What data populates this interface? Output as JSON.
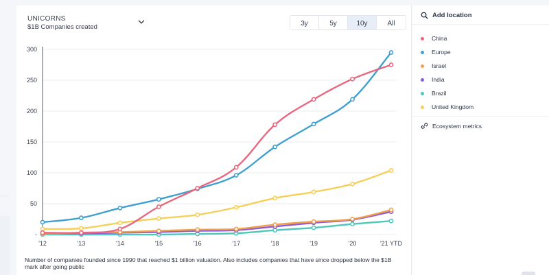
{
  "header": {
    "title": "UNICORNS",
    "subtitle": "$1B Companies created"
  },
  "range_tabs": [
    {
      "label": "3y",
      "active": false
    },
    {
      "label": "5y",
      "active": false
    },
    {
      "label": "10y",
      "active": true
    },
    {
      "label": "All",
      "active": false
    }
  ],
  "footnote": "Number of companies founded since 1990 that reached $1 billion valuation. Also includes companies that have since dropped below the $1B mark after going public",
  "sidebar": {
    "add_location": "Add location",
    "ecosystem_metrics": "Ecosystem metrics",
    "legend": [
      {
        "label": "China",
        "color": "#e8677f"
      },
      {
        "label": "Europe",
        "color": "#3fa0d0"
      },
      {
        "label": "Israel",
        "color": "#f0a04a"
      },
      {
        "label": "India",
        "color": "#8e5bd6"
      },
      {
        "label": "Brazil",
        "color": "#4ec7bb"
      },
      {
        "label": "United Kingdom",
        "color": "#f6cf5a"
      }
    ]
  },
  "colors": {
    "accent_tab": "#e8eef7",
    "grid": "#e9ecf0",
    "axis_text": "#39404d"
  },
  "chart_data": {
    "type": "line",
    "x": [
      "'12",
      "'13",
      "'14",
      "'15",
      "'16",
      "'17",
      "'18",
      "'19",
      "'20",
      "'21 YTD"
    ],
    "ylim": [
      0,
      300
    ],
    "yticks": [
      "-",
      "50",
      "100",
      "150",
      "200",
      "250",
      "300"
    ],
    "grid": "horizontal",
    "series": [
      {
        "name": "China",
        "color": "#e8677f",
        "values": [
          3,
          3,
          9,
          45,
          75,
          109,
          178,
          219,
          252,
          275
        ]
      },
      {
        "name": "Europe",
        "color": "#3fa0d0",
        "values": [
          20,
          27,
          43,
          57,
          74,
          96,
          142,
          179,
          219,
          295
        ]
      },
      {
        "name": "Israel",
        "color": "#f0a04a",
        "values": [
          1,
          3,
          4,
          6,
          8,
          9,
          16,
          21,
          25,
          40
        ]
      },
      {
        "name": "India",
        "color": "#8e5bd6",
        "values": [
          2,
          2,
          3,
          4,
          6,
          7,
          13,
          19,
          24,
          37
        ]
      },
      {
        "name": "Brazil",
        "color": "#4ec7bb",
        "values": [
          0,
          0,
          0,
          0,
          1,
          2,
          7,
          11,
          17,
          22
        ]
      },
      {
        "name": "United Kingdom",
        "color": "#f6cf5a",
        "values": [
          9,
          10,
          19,
          26,
          32,
          44,
          59,
          69,
          82,
          104
        ]
      }
    ]
  }
}
